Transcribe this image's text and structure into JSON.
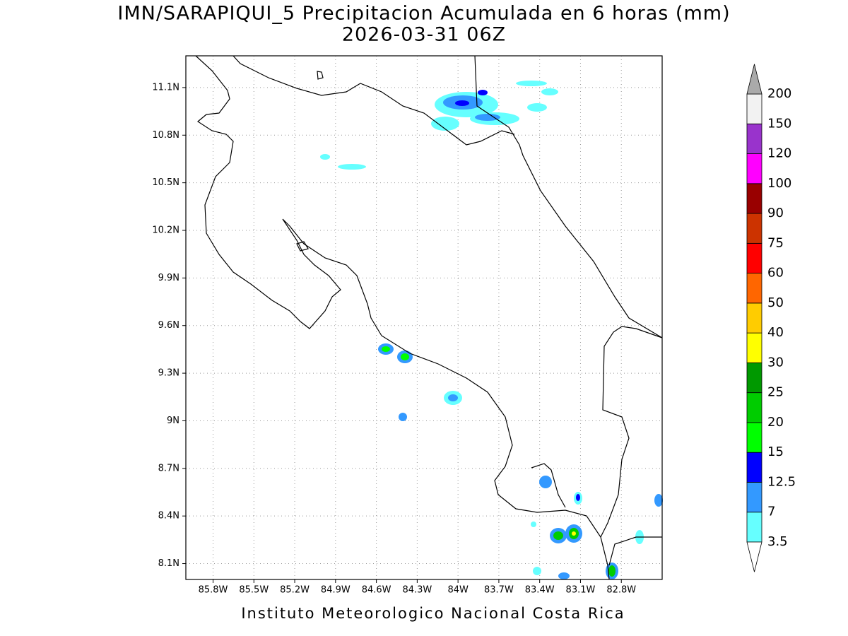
{
  "map": {
    "title": "IMN/SARAPIQUI_5 Precipitacion Acumulada en 6 horas (mm)",
    "subtitle": "2026-03-31 06Z",
    "footer": "Instituto Meteorologico Nacional Costa Rica",
    "xlim": [
      -86.0,
      -82.5
    ],
    "ylim": [
      8.0,
      11.3
    ],
    "grid": true,
    "xticks": [
      {
        "value": -85.8,
        "label": "85.8W"
      },
      {
        "value": -85.5,
        "label": "85.5W"
      },
      {
        "value": -85.2,
        "label": "85.2W"
      },
      {
        "value": -84.9,
        "label": "84.9W"
      },
      {
        "value": -84.6,
        "label": "84.6W"
      },
      {
        "value": -84.3,
        "label": "84.3W"
      },
      {
        "value": -84.0,
        "label": "84W"
      },
      {
        "value": -83.7,
        "label": "83.7W"
      },
      {
        "value": -83.4,
        "label": "83.4W"
      },
      {
        "value": -83.1,
        "label": "83.1W"
      },
      {
        "value": -82.8,
        "label": "82.8W"
      }
    ],
    "yticks": [
      {
        "value": 8.1,
        "label": "8.1N"
      },
      {
        "value": 8.4,
        "label": "8.4N"
      },
      {
        "value": 8.7,
        "label": "8.7N"
      },
      {
        "value": 9.0,
        "label": "9N"
      },
      {
        "value": 9.3,
        "label": "9.3N"
      },
      {
        "value": 9.6,
        "label": "9.6N"
      },
      {
        "value": 9.9,
        "label": "9.9N"
      },
      {
        "value": 10.2,
        "label": "10.2N"
      },
      {
        "value": 10.5,
        "label": "10.5N"
      },
      {
        "value": 10.8,
        "label": "10.8N"
      },
      {
        "value": 11.1,
        "label": "11.1N"
      }
    ],
    "colorbar": {
      "levels": [
        3.5,
        7,
        12.5,
        15,
        20,
        25,
        30,
        40,
        50,
        60,
        75,
        90,
        100,
        120,
        150,
        200
      ],
      "colors": [
        "#66ffff",
        "#3399ff",
        "#0000ff",
        "#00ff00",
        "#00cc00",
        "#009900",
        "#ffff00",
        "#ffcc00",
        "#ff6600",
        "#ff0000",
        "#cc3300",
        "#990000",
        "#ff00ff",
        "#9933cc",
        "#f2f2f2"
      ],
      "below_color": "#ffffff",
      "above_color": "#aaaaaa"
    }
  }
}
